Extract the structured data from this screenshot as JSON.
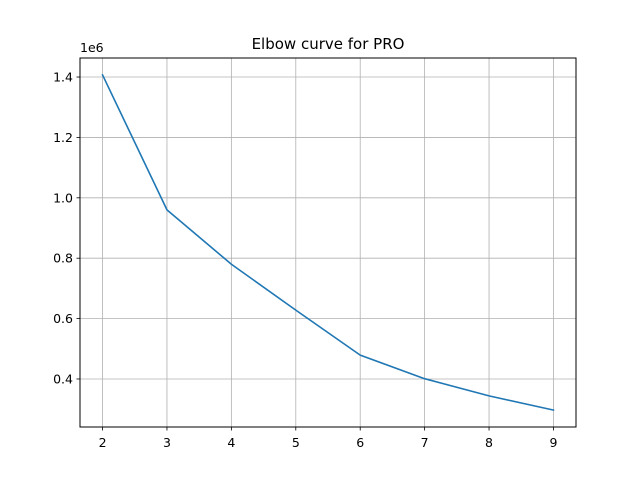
{
  "chart_data": {
    "type": "line",
    "title": "Elbow curve for PRO",
    "xlabel": "",
    "ylabel": "",
    "y_offset_label": "1e6",
    "x": [
      2,
      3,
      4,
      5,
      6,
      7,
      8,
      9
    ],
    "series": [
      {
        "values": [
          1.407,
          0.96,
          0.78,
          0.628,
          0.479,
          0.401,
          0.344,
          0.297
        ]
      }
    ],
    "xlim": [
      1.65,
      9.35
    ],
    "ylim": [
      0.241,
      1.463
    ],
    "xticks": [
      2,
      3,
      4,
      5,
      6,
      7,
      8,
      9
    ],
    "yticks": [
      0.4,
      0.6,
      0.8,
      1.0,
      1.2,
      1.4
    ],
    "ytick_labels": [
      "0.4",
      "0.6",
      "0.8",
      "1.0",
      "1.2",
      "1.4"
    ],
    "grid": true,
    "line_color": "#1f77b4"
  }
}
